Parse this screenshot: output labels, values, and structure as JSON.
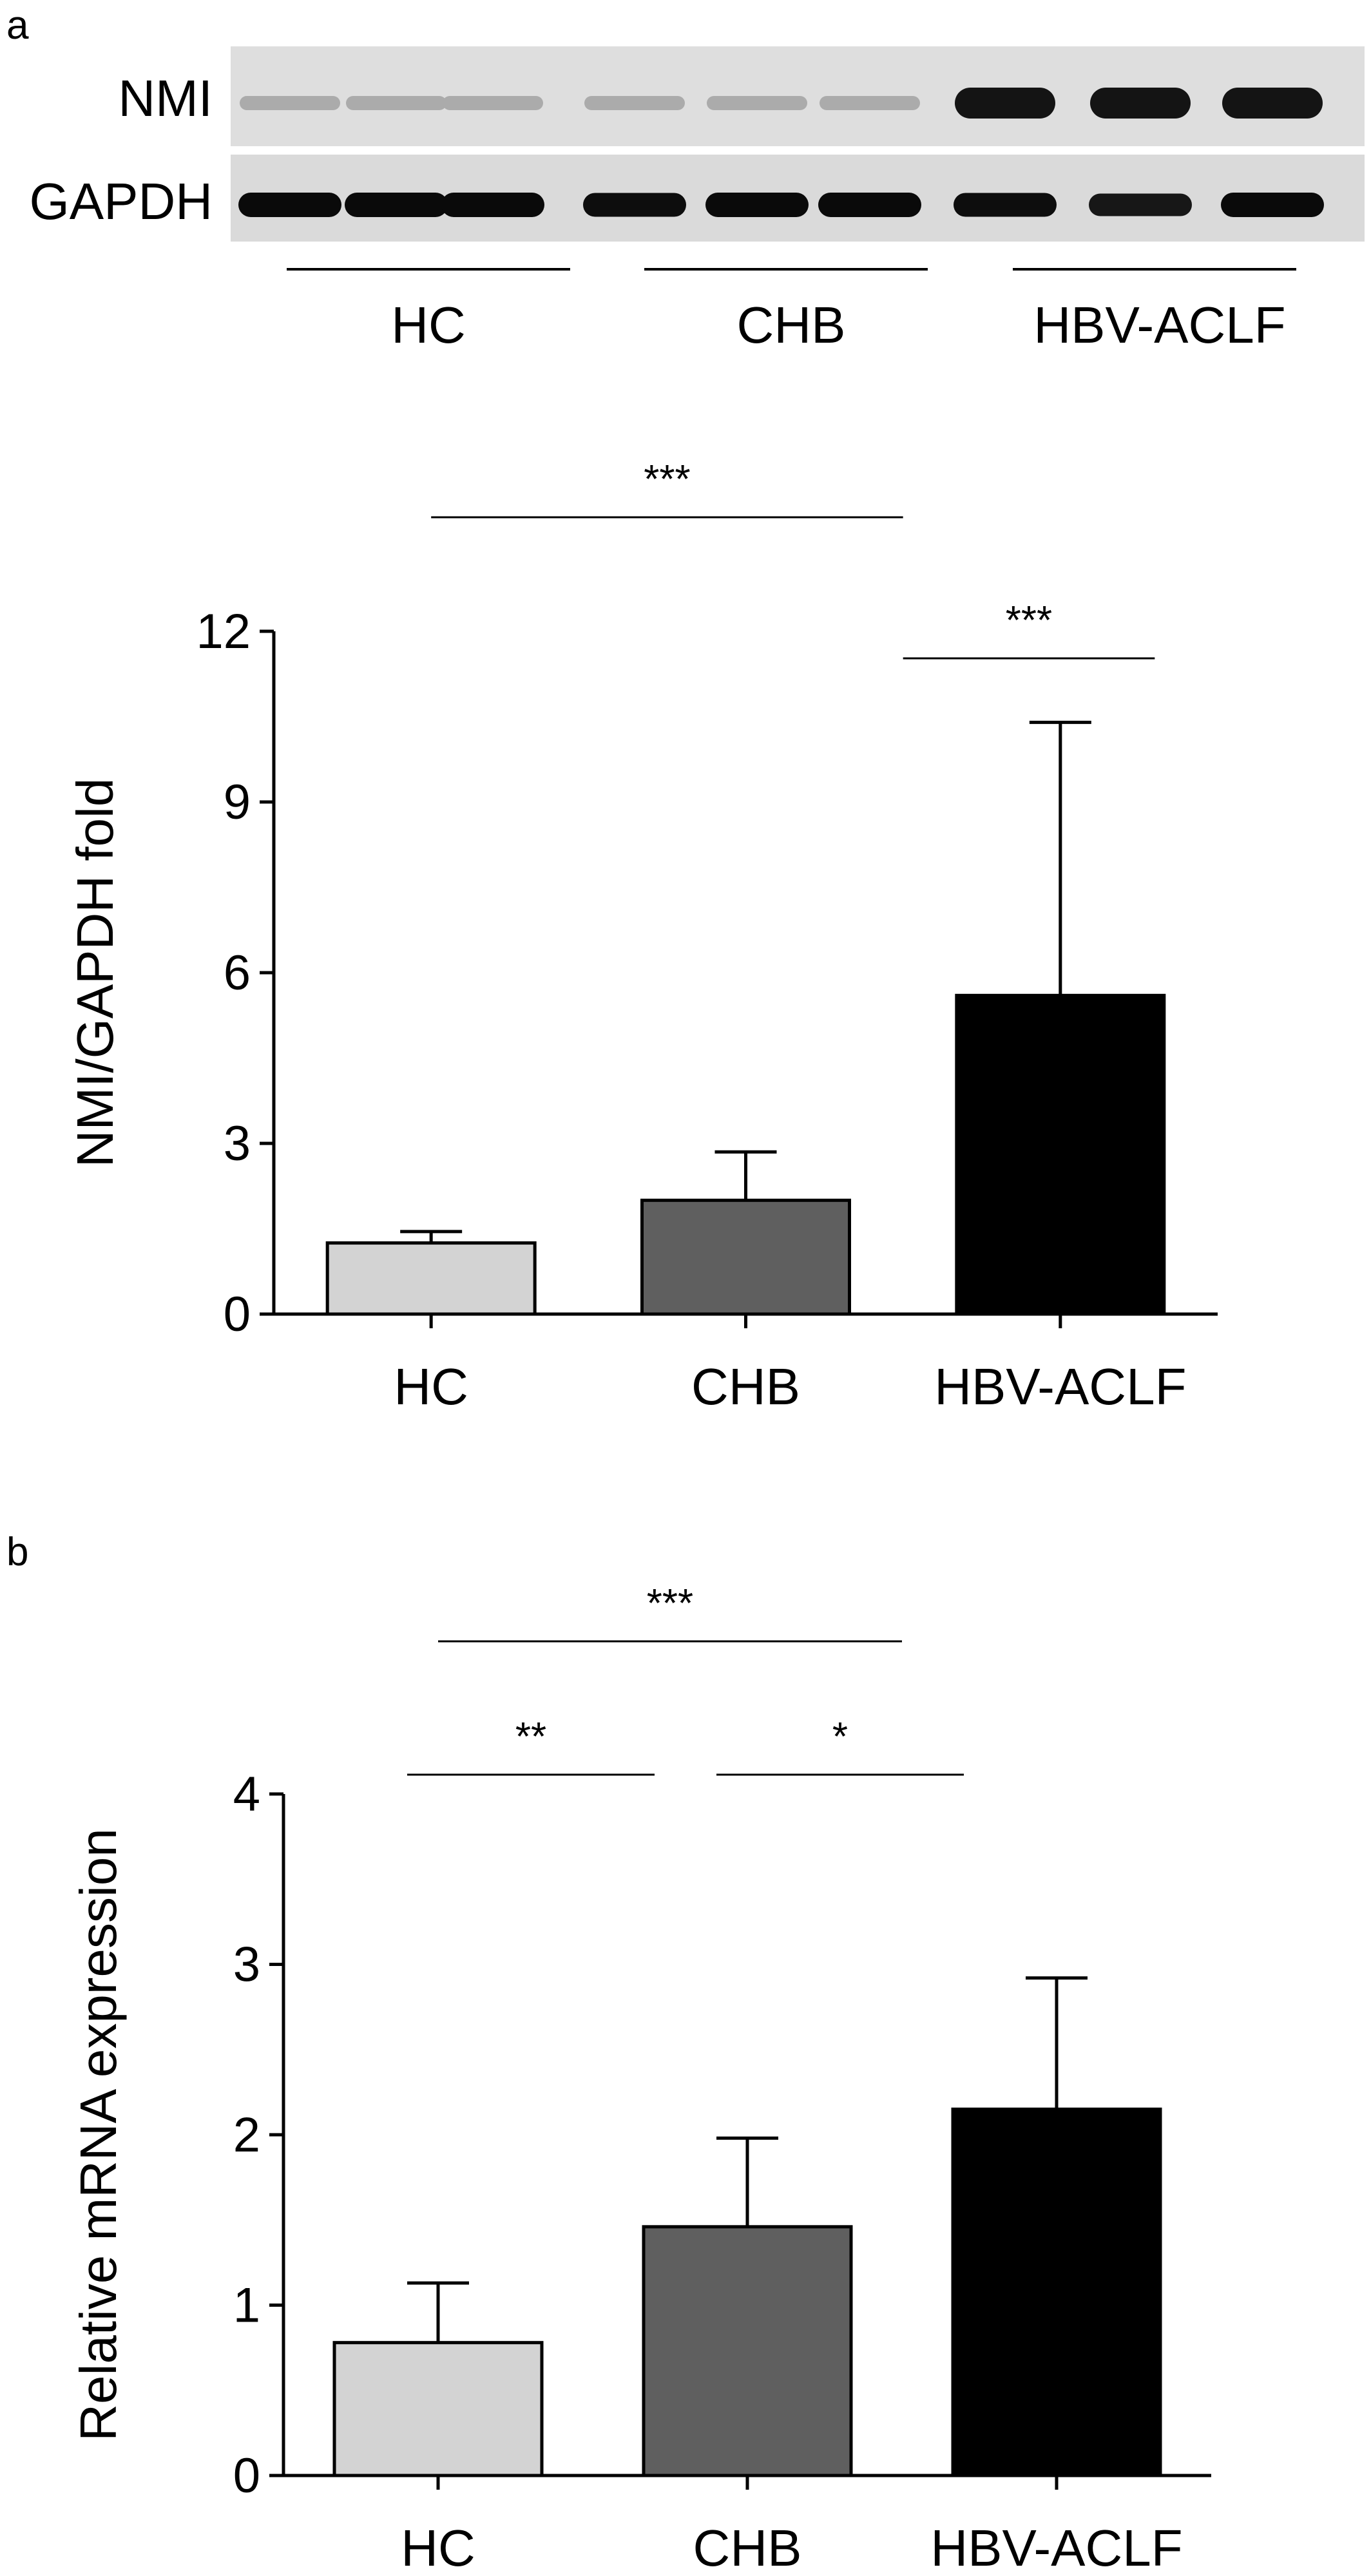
{
  "panel_a": {
    "label": "a",
    "blot": {
      "rows": [
        "NMI",
        "GAPDH"
      ],
      "groups": [
        "HC",
        "CHB",
        "HBV-ACLF"
      ],
      "nmi_intensity": [
        0.3,
        0.3,
        0.3,
        0.3,
        0.3,
        0.3,
        1.0,
        1.0,
        1.0
      ],
      "gapdh_intensity": [
        1.0,
        1.0,
        1.0,
        0.95,
        1.0,
        1.0,
        0.95,
        0.75,
        1.0
      ]
    },
    "significance": [
      {
        "from": 0,
        "to": 1.5,
        "label": "***",
        "level": 1
      },
      {
        "from": 1.5,
        "to": 2.3,
        "label": "***",
        "level": 0
      }
    ]
  },
  "panel_b": {
    "label": "b",
    "significance": [
      {
        "from": 0,
        "to": 1.5,
        "label": "***",
        "level": 1
      },
      {
        "from": -0.1,
        "to": 0.7,
        "label": "**",
        "level": 0
      },
      {
        "from": 0.9,
        "to": 1.7,
        "label": "*",
        "level": 0
      }
    ]
  },
  "chart_data": [
    {
      "type": "bar",
      "categories": [
        "HC",
        "CHB",
        "HBV-ACLF"
      ],
      "values": [
        1.25,
        2.0,
        5.6
      ],
      "errors": [
        0.2,
        0.85,
        4.8
      ],
      "colors": [
        "#d3d3d3",
        "#5f5f5f",
        "#000000"
      ],
      "ylabel": "NMI/GAPDH fold",
      "ylim": [
        0,
        12
      ],
      "yticks": [
        0,
        3,
        6,
        9,
        12
      ],
      "grid": false
    },
    {
      "type": "bar",
      "categories": [
        "HC",
        "CHB",
        "HBV-ACLF"
      ],
      "values": [
        0.78,
        1.46,
        2.15
      ],
      "errors": [
        0.35,
        0.52,
        0.77
      ],
      "colors": [
        "#d3d3d3",
        "#5f5f5f",
        "#000000"
      ],
      "ylabel": "Relative mRNA expression",
      "ylim": [
        0,
        4
      ],
      "yticks": [
        0,
        1,
        2,
        3,
        4
      ],
      "grid": false
    }
  ]
}
